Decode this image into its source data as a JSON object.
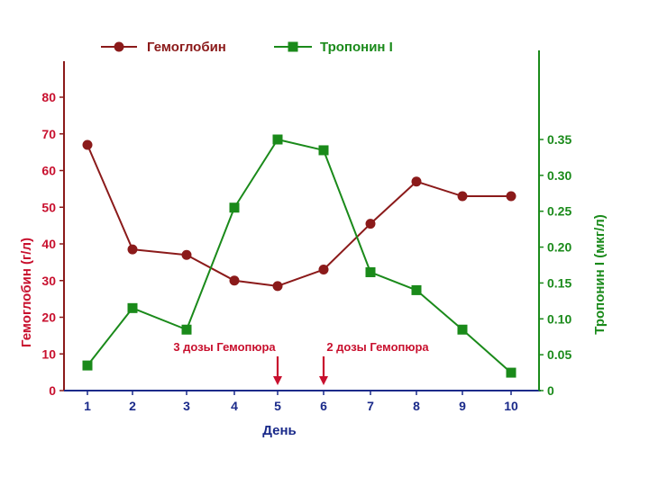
{
  "chart_data": {
    "type": "line",
    "x": [
      1,
      2,
      3,
      4,
      5,
      6,
      7,
      8,
      9,
      10
    ],
    "xlabel": "День",
    "series": [
      {
        "name": "Гемоглобин",
        "axis": "left",
        "marker": "circle",
        "color": "#8b1a1a",
        "values": [
          67,
          38.5,
          37,
          30,
          28.5,
          33,
          45.5,
          57,
          53,
          53
        ]
      },
      {
        "name": "Тропонин I",
        "axis": "right",
        "marker": "square",
        "color": "#1a8a1a",
        "values": [
          0.035,
          0.115,
          0.085,
          0.255,
          0.35,
          0.335,
          0.165,
          0.14,
          0.085,
          0.025
        ]
      }
    ],
    "y_left": {
      "label": "Гемоглобин (г/л)",
      "range": [
        0,
        80
      ],
      "ticks": [
        "0",
        "10",
        "20",
        "30",
        "40",
        "50",
        "60",
        "70",
        "80"
      ],
      "color": "#c8102e"
    },
    "y_right": {
      "label": "Тропонин I (мкг/л)",
      "range": [
        0,
        0.35
      ],
      "ticks": [
        "0",
        "0.05",
        "0.10",
        "0.15",
        "0.20",
        "0.25",
        "0.30",
        "0.35"
      ],
      "color": "#1a8a1a"
    },
    "x_ticks": [
      "1",
      "2",
      "3",
      "4",
      "5",
      "6",
      "7",
      "8",
      "9",
      "10"
    ],
    "x_tick_color": "#1a2a8a",
    "annotations": [
      {
        "text": "3 дозы Гемопюра",
        "x": 5,
        "color": "#c8102e"
      },
      {
        "text": "2 дозы Гемопюра",
        "x": 6,
        "color": "#c8102e"
      }
    ],
    "legend_placement": "top",
    "grid": false
  }
}
